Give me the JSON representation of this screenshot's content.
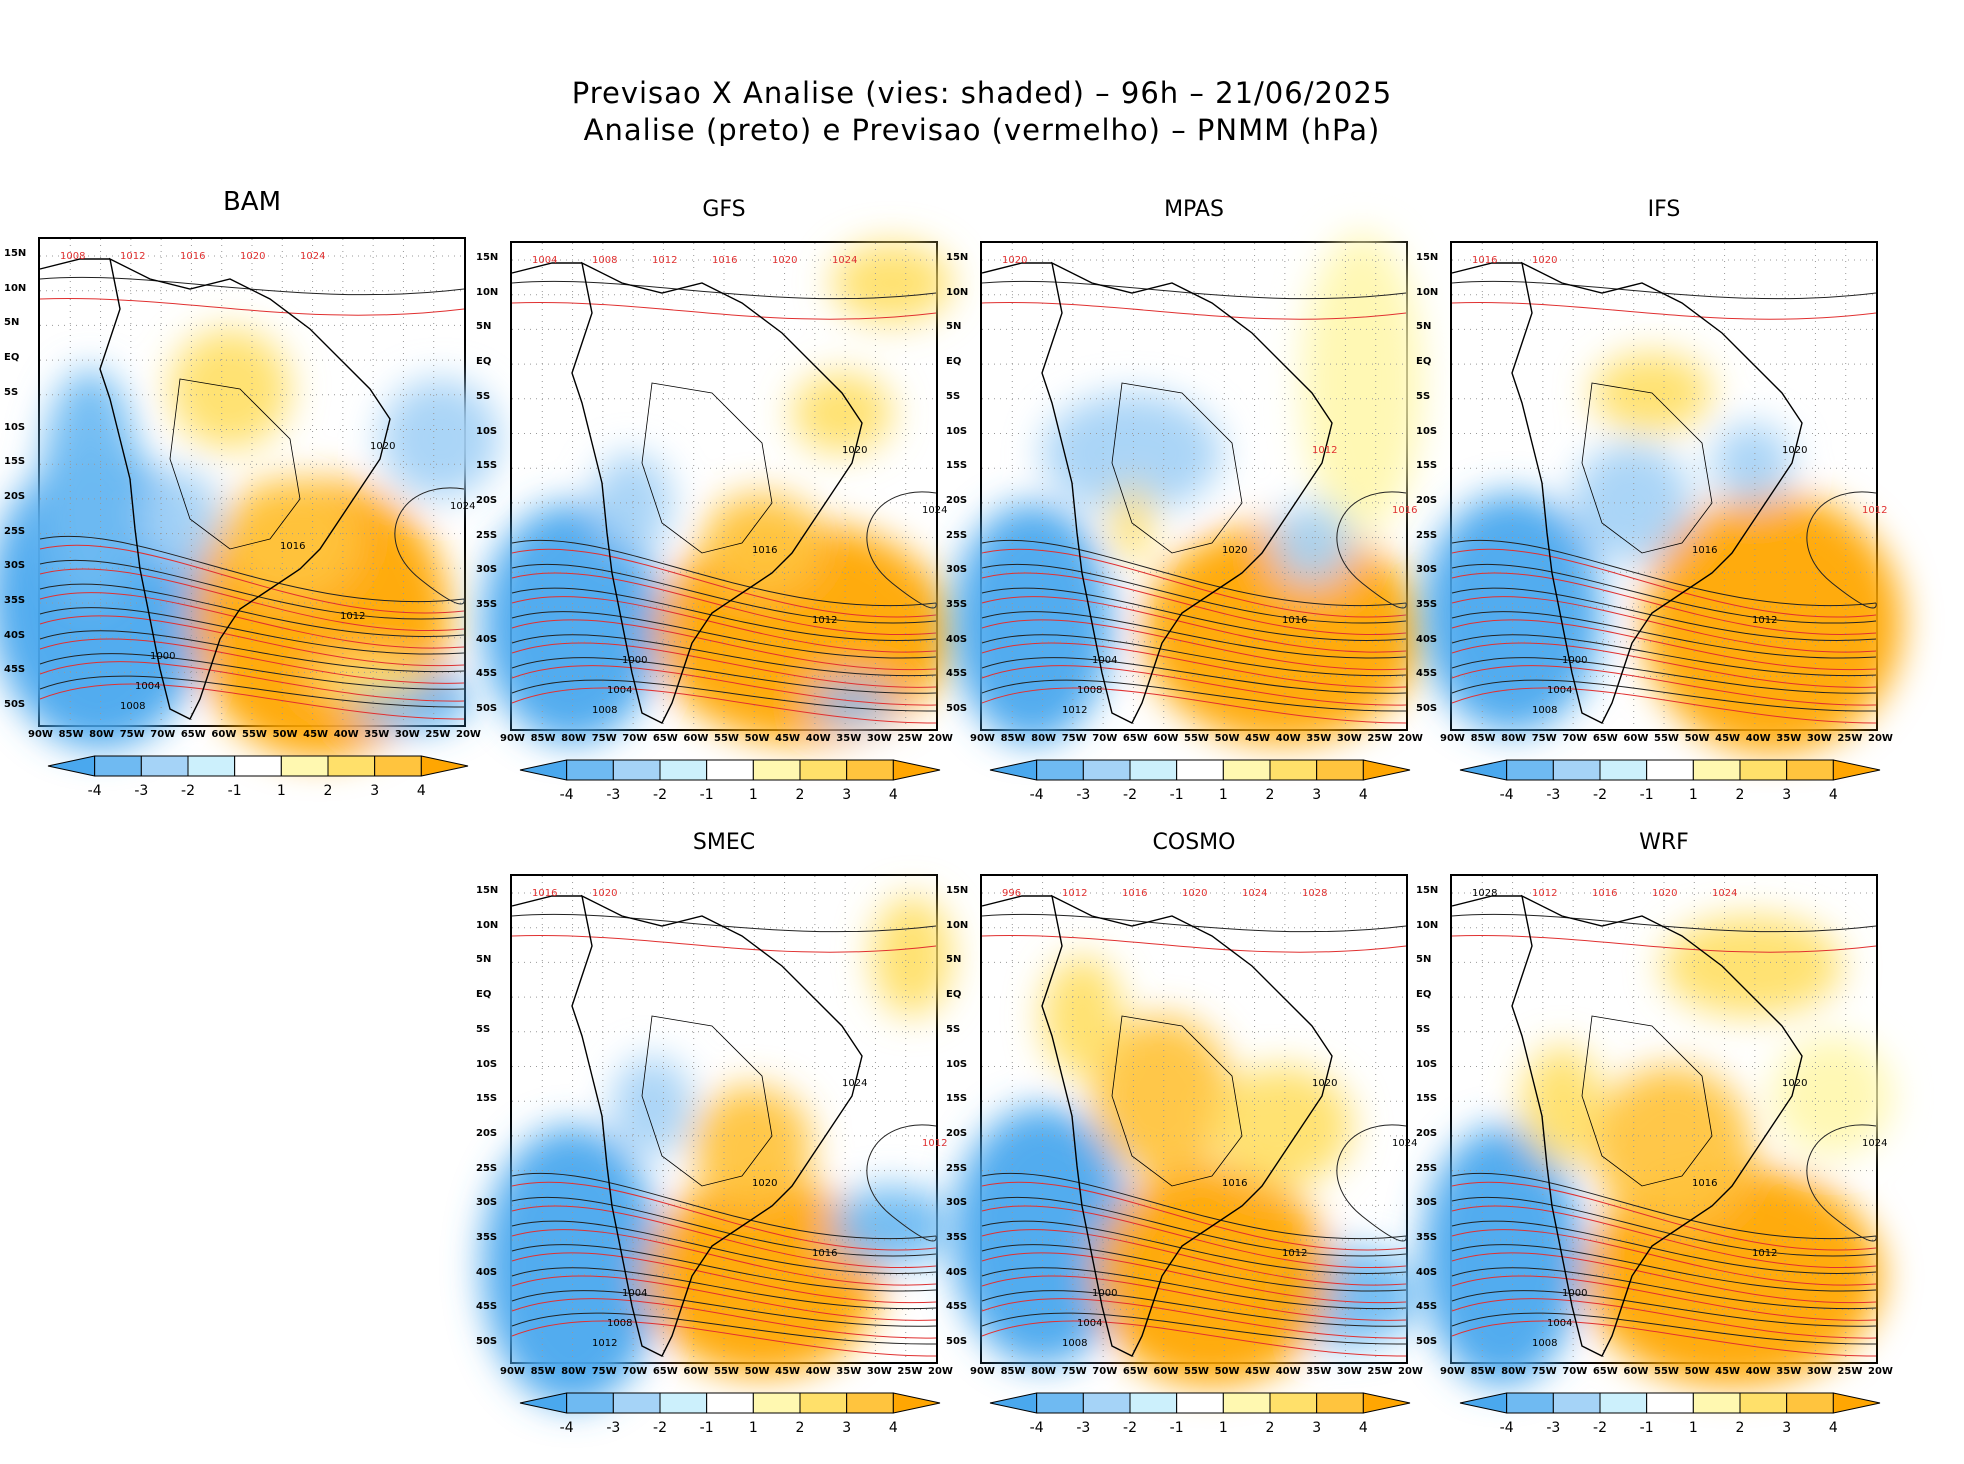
{
  "title_line1": "Previsao X Analise (vies: shaded) – 96h – 21/06/2025",
  "title_line2": "Analise (preto) e Previsao (vermelho) – PNMM (hPa)",
  "colorbar": {
    "labels": [
      "-4",
      "-3",
      "-2",
      "-1",
      "1",
      "2",
      "3",
      "4"
    ],
    "colors": [
      "#4aa8ee",
      "#6fbaf2",
      "#a5d3f7",
      "#ccf0fc",
      "#ffffff",
      "#fff8b0",
      "#ffe06a",
      "#ffc43e",
      "#ffa602"
    ]
  },
  "lat_labels": [
    "15N",
    "10N",
    "5N",
    "EQ",
    "5S",
    "10S",
    "15S",
    "20S",
    "25S",
    "30S",
    "35S",
    "40S",
    "45S",
    "50S"
  ],
  "lon_labels": [
    "90W",
    "85W",
    "80W",
    "75W",
    "70W",
    "65W",
    "60W",
    "55W",
    "50W",
    "45W",
    "40W",
    "35W",
    "30W",
    "25W",
    "20W"
  ],
  "chart_data": [
    {
      "type": "heatmap",
      "model": "BAM",
      "title": "BAM",
      "variable": "PNMM bias (hPa)",
      "xlim": [
        "90W",
        "20W"
      ],
      "ylim": [
        "53S",
        "17N"
      ],
      "analysis_contours": [
        "1000",
        "1004",
        "1008",
        "1012",
        "1016",
        "1020",
        "1024"
      ],
      "forecast_contours": [
        "1008",
        "1012",
        "1016",
        "1020",
        "1024"
      ]
    },
    {
      "type": "heatmap",
      "model": "GFS",
      "title": "GFS",
      "variable": "PNMM bias (hPa)",
      "xlim": [
        "90W",
        "20W"
      ],
      "ylim": [
        "53S",
        "17N"
      ],
      "analysis_contours": [
        "1000",
        "1004",
        "1008",
        "1012",
        "1016",
        "1020",
        "1024"
      ],
      "forecast_contours": [
        "1004",
        "1008",
        "1012",
        "1016",
        "1020",
        "1024"
      ]
    },
    {
      "type": "heatmap",
      "model": "MPAS",
      "title": "MPAS",
      "variable": "PNMM bias (hPa)",
      "xlim": [
        "90W",
        "20W"
      ],
      "ylim": [
        "53S",
        "17N"
      ],
      "analysis_contours": [
        "1004",
        "1008",
        "1012",
        "1016",
        "1020"
      ],
      "forecast_contours": [
        "1012",
        "1016",
        "1020"
      ]
    },
    {
      "type": "heatmap",
      "model": "IFS",
      "title": "IFS",
      "variable": "PNMM bias (hPa)",
      "xlim": [
        "90W",
        "20W"
      ],
      "ylim": [
        "53S",
        "17N"
      ],
      "analysis_contours": [
        "1000",
        "1004",
        "1008",
        "1012",
        "1016",
        "1020"
      ],
      "forecast_contours": [
        "1012",
        "1016",
        "1020"
      ]
    },
    {
      "type": "heatmap",
      "model": "SMEC",
      "title": "SMEC",
      "variable": "PNMM bias (hPa)",
      "xlim": [
        "90W",
        "20W"
      ],
      "ylim": [
        "53S",
        "17N"
      ],
      "analysis_contours": [
        "1004",
        "1008",
        "1012",
        "1016",
        "1020",
        "1024"
      ],
      "forecast_contours": [
        "1012",
        "1016",
        "1020"
      ]
    },
    {
      "type": "heatmap",
      "model": "COSMO",
      "title": "COSMO",
      "variable": "PNMM bias (hPa)",
      "xlim": [
        "90W",
        "20W"
      ],
      "ylim": [
        "53S",
        "17N"
      ],
      "analysis_contours": [
        "1000",
        "1004",
        "1008",
        "1012",
        "1016",
        "1020",
        "1024"
      ],
      "forecast_contours": [
        "996",
        "1012",
        "1016",
        "1020",
        "1024",
        "1028"
      ]
    },
    {
      "type": "heatmap",
      "model": "WRF",
      "title": "WRF",
      "variable": "PNMM bias (hPa)",
      "xlim": [
        "90W",
        "20W"
      ],
      "ylim": [
        "53S",
        "17N"
      ],
      "analysis_contours": [
        "1000",
        "1004",
        "1008",
        "1012",
        "1016",
        "1020",
        "1024",
        "1028"
      ],
      "forecast_contours": [
        "1012",
        "1016",
        "1020",
        "1024"
      ]
    }
  ]
}
